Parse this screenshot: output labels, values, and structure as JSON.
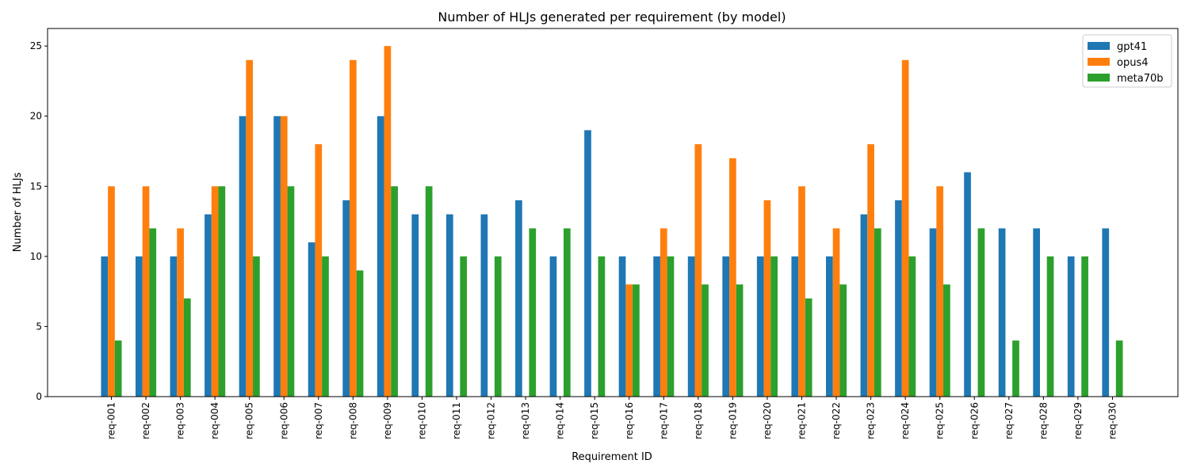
{
  "chart_data": {
    "type": "bar",
    "title": "Number of HLJs generated per requirement (by model)",
    "xlabel": "Requirement ID",
    "ylabel": "Number of HLJs",
    "ylim": [
      0,
      26.25
    ],
    "yticks": [
      0,
      5,
      10,
      15,
      20,
      25
    ],
    "legend_position": "top-right",
    "grid": false,
    "categories": [
      "req-001",
      "req-002",
      "req-003",
      "req-004",
      "req-005",
      "req-006",
      "req-007",
      "req-008",
      "req-009",
      "req-010",
      "req-011",
      "req-012",
      "req-013",
      "req-014",
      "req-015",
      "req-016",
      "req-017",
      "req-018",
      "req-019",
      "req-020",
      "req-021",
      "req-022",
      "req-023",
      "req-024",
      "req-025",
      "req-026",
      "req-027",
      "req-028",
      "req-029",
      "req-030"
    ],
    "series": [
      {
        "name": "gpt41",
        "color": "#1f77b4",
        "values": [
          10,
          10,
          10,
          13,
          20,
          20,
          11,
          14,
          20,
          13,
          13,
          13,
          14,
          10,
          19,
          10,
          10,
          10,
          10,
          10,
          10,
          10,
          13,
          14,
          12,
          16,
          12,
          12,
          10,
          12
        ]
      },
      {
        "name": "opus4",
        "color": "#ff7f0e",
        "values": [
          15,
          15,
          12,
          15,
          24,
          20,
          18,
          24,
          25,
          0,
          0,
          0,
          0,
          0,
          0,
          8,
          12,
          18,
          17,
          14,
          15,
          12,
          18,
          24,
          15,
          0,
          0,
          0,
          0,
          0
        ]
      },
      {
        "name": "meta70b",
        "color": "#2ca02c",
        "values": [
          4,
          12,
          7,
          15,
          10,
          15,
          10,
          9,
          15,
          15,
          10,
          10,
          12,
          12,
          10,
          8,
          10,
          8,
          8,
          10,
          7,
          8,
          12,
          10,
          8,
          12,
          4,
          10,
          10,
          4
        ]
      }
    ]
  }
}
